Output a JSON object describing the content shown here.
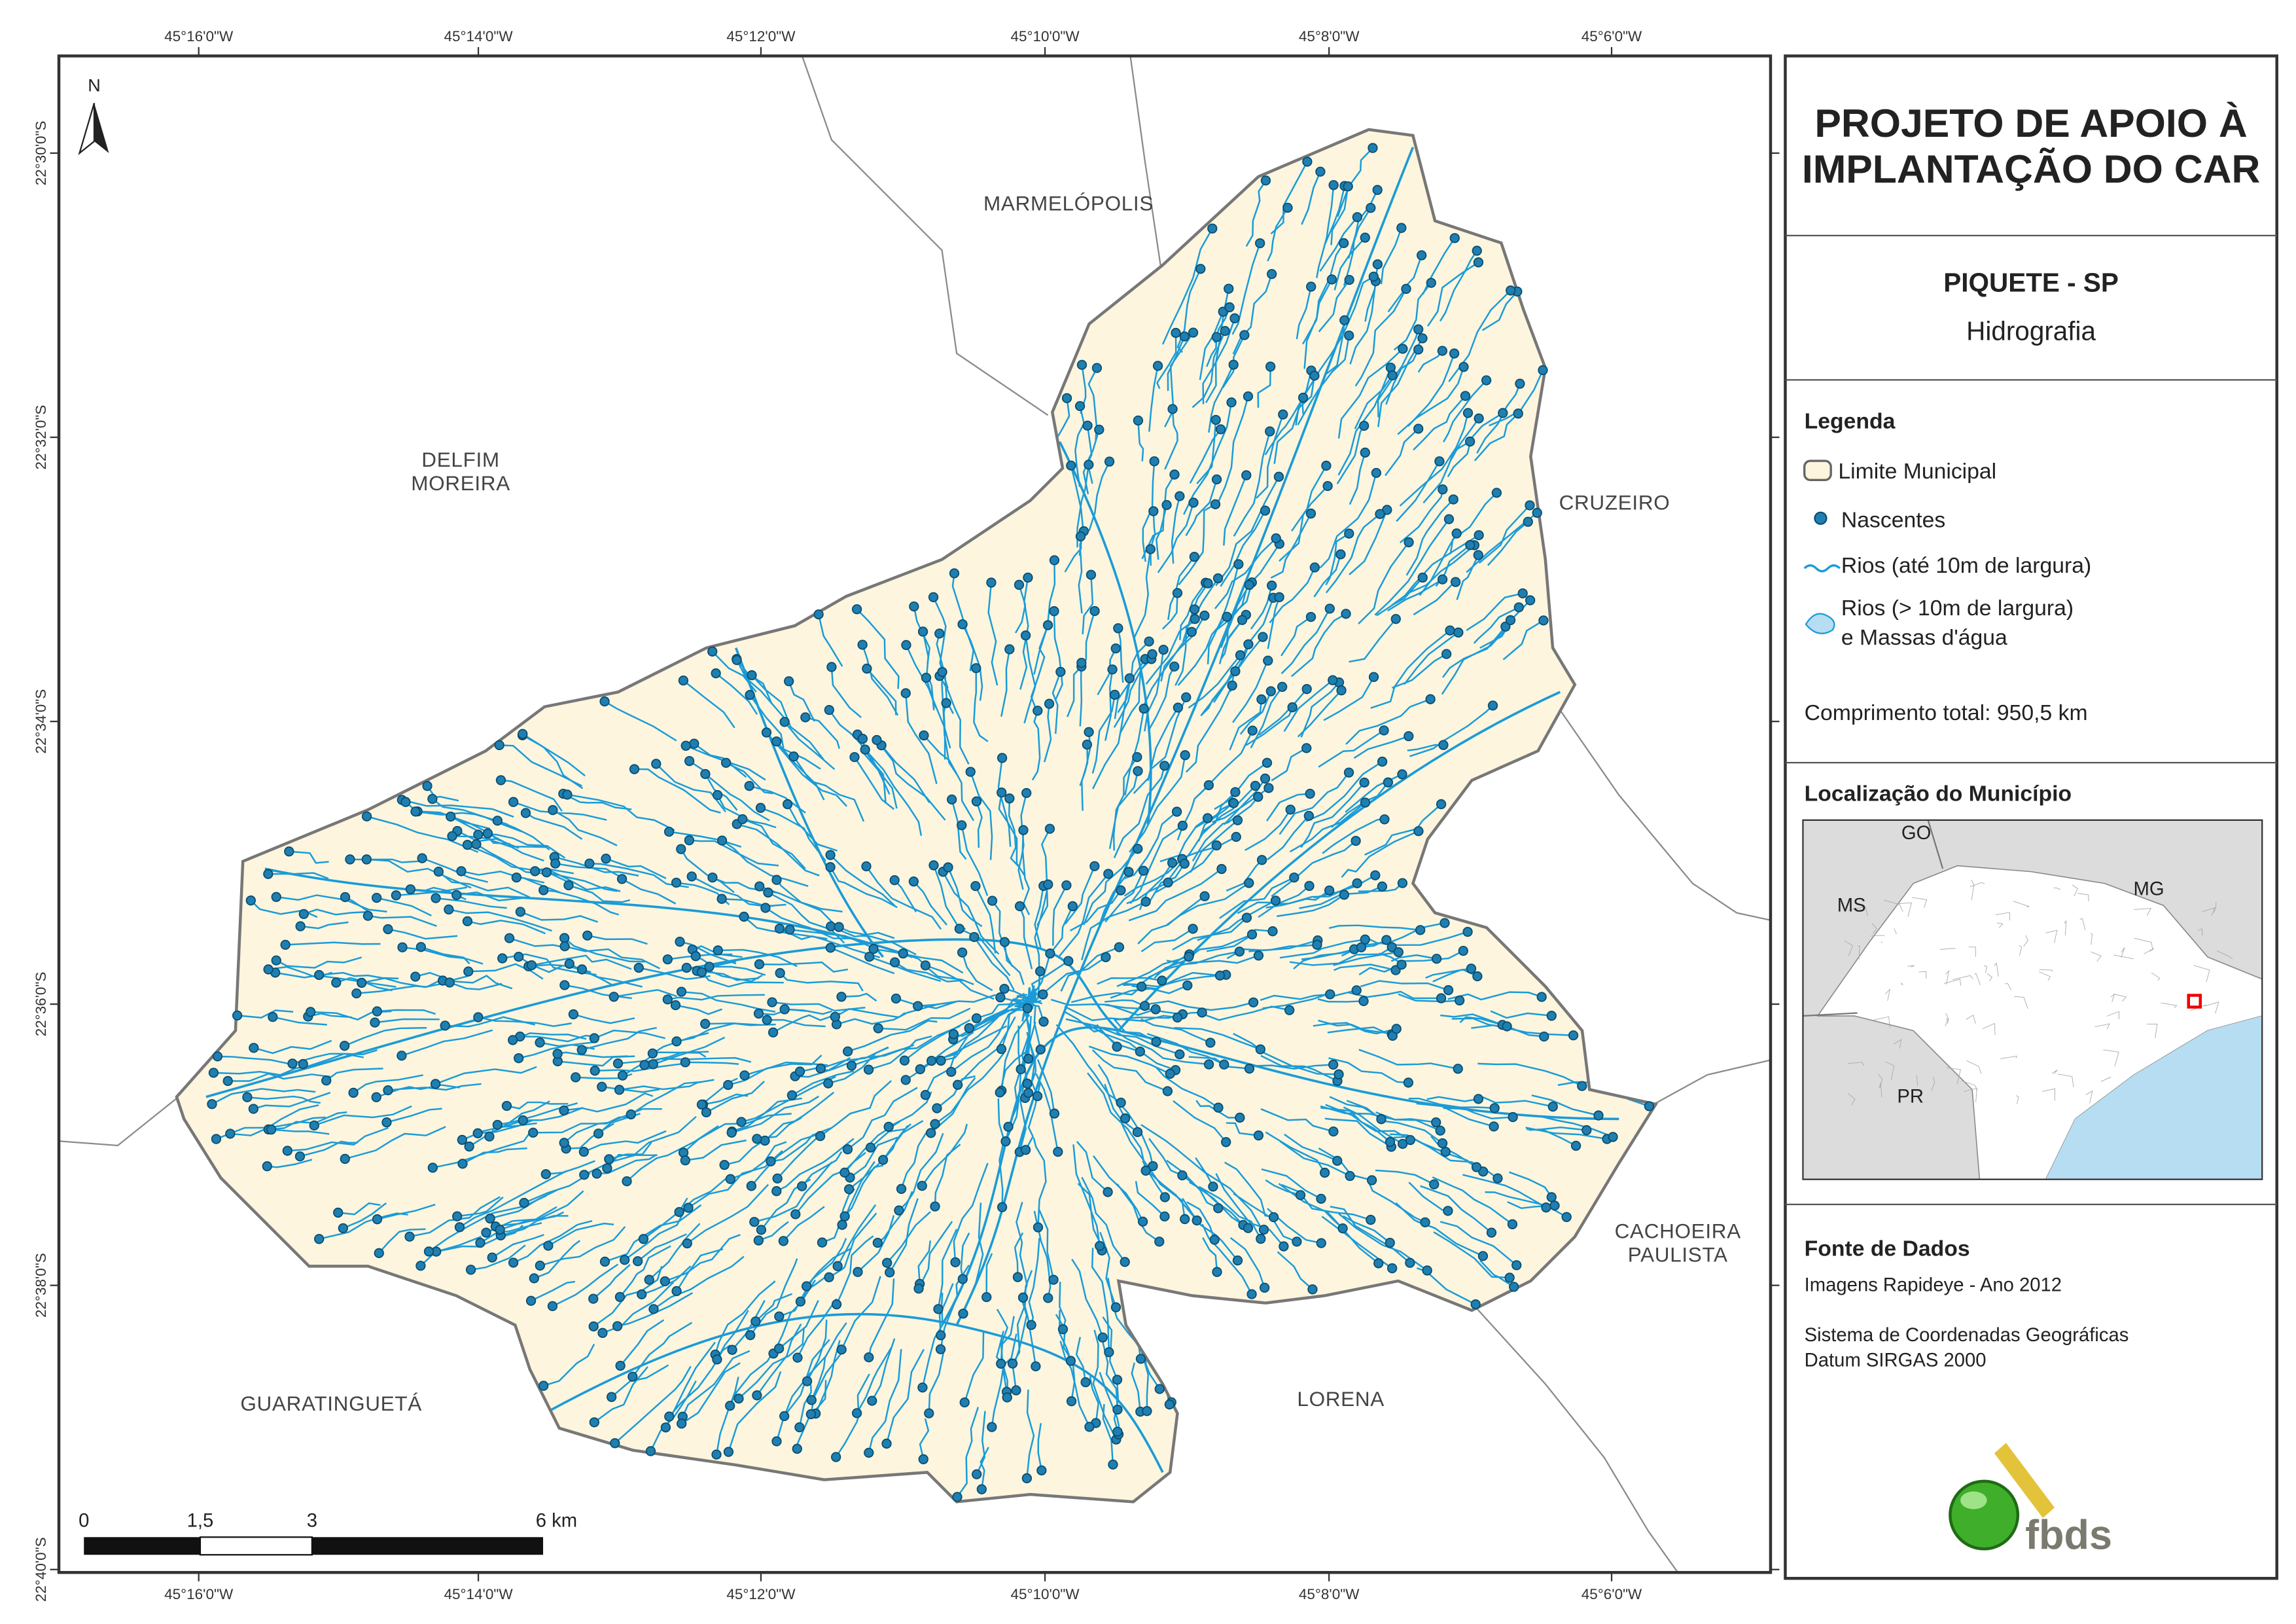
{
  "map": {
    "lon_labels": [
      "45°16'0\"W",
      "45°14'0\"W",
      "45°12'0\"W",
      "45°10'0\"W",
      "45°8'0\"W",
      "45°6'0\"W"
    ],
    "lat_labels": [
      "22°30'0\"S",
      "22°32'0\"S",
      "22°34'0\"S",
      "22°36'0\"S",
      "22°38'0\"S",
      "22°40'0\"S"
    ],
    "north": "N",
    "places": [
      {
        "lines": [
          "MARMELÓPOLIS"
        ]
      },
      {
        "lines": [
          "DELFIM",
          "MOREIRA"
        ]
      },
      {
        "lines": [
          "CRUZEIRO"
        ]
      },
      {
        "lines": [
          "CACHOEIRA",
          "PAULISTA"
        ]
      },
      {
        "lines": [
          "GUARATINGUETÁ"
        ]
      },
      {
        "lines": [
          "LORENA"
        ]
      }
    ],
    "scale_labels": [
      "0",
      "1,5",
      "3",
      "6 km"
    ]
  },
  "panel": {
    "title": [
      "PROJETO DE APOIO À",
      "IMPLANTAÇÃO DO CAR"
    ],
    "municipality": "PIQUETE - SP",
    "theme": "Hidrografia",
    "legend": {
      "heading": "Legenda",
      "boundary": "Limite Municipal",
      "springs": "Nascentes",
      "rivers": "Rios (até 10m de largura)",
      "water_bodies": [
        "Rios (> 10m de largura)",
        "e Massas d'água"
      ]
    },
    "total_length": "Comprimento total: 950,5 km",
    "location": {
      "heading": "Localização do Município",
      "labels": [
        "GO",
        "MS",
        "MG",
        "PR"
      ]
    },
    "sources": {
      "heading": "Fonte de Dados",
      "lines": [
        "Imagens Rapideye - Ano 2012",
        "Sistema de Coordenadas Geográficas",
        "Datum SIRGAS 2000"
      ]
    },
    "logo": "fbds"
  }
}
